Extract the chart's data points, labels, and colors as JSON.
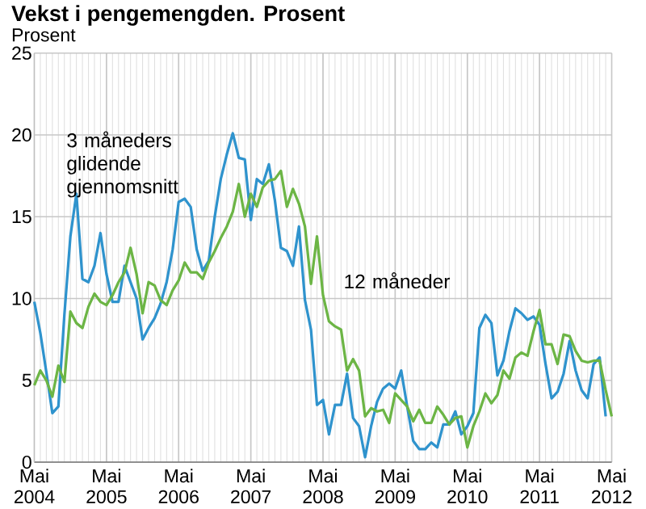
{
  "chart_data": {
    "type": "line",
    "title": "Vekst i pengemengden. Prosent",
    "ylabel": "Prosent",
    "x": [
      "2004-05",
      "2004-06",
      "2004-07",
      "2004-08",
      "2004-09",
      "2004-10",
      "2004-11",
      "2004-12",
      "2005-01",
      "2005-02",
      "2005-03",
      "2005-04",
      "2005-05",
      "2005-06",
      "2005-07",
      "2005-08",
      "2005-09",
      "2005-10",
      "2005-11",
      "2005-12",
      "2006-01",
      "2006-02",
      "2006-03",
      "2006-04",
      "2006-05",
      "2006-06",
      "2006-07",
      "2006-08",
      "2006-09",
      "2006-10",
      "2006-11",
      "2006-12",
      "2007-01",
      "2007-02",
      "2007-03",
      "2007-04",
      "2007-05",
      "2007-06",
      "2007-07",
      "2007-08",
      "2007-09",
      "2007-10",
      "2007-11",
      "2007-12",
      "2008-01",
      "2008-02",
      "2008-03",
      "2008-04",
      "2008-05",
      "2008-06",
      "2008-07",
      "2008-08",
      "2008-09",
      "2008-10",
      "2008-11",
      "2008-12",
      "2009-01",
      "2009-02",
      "2009-03",
      "2009-04",
      "2009-05",
      "2009-06",
      "2009-07",
      "2009-08",
      "2009-09",
      "2009-10",
      "2009-11",
      "2009-12",
      "2010-01",
      "2010-02",
      "2010-03",
      "2010-04",
      "2010-05",
      "2010-06",
      "2010-07",
      "2010-08",
      "2010-09",
      "2010-10",
      "2010-11",
      "2010-12",
      "2011-01",
      "2011-02",
      "2011-03",
      "2011-04",
      "2011-05",
      "2011-06",
      "2011-07",
      "2011-08",
      "2011-09",
      "2011-10",
      "2011-11",
      "2011-12",
      "2012-01",
      "2012-02",
      "2012-03",
      "2012-04",
      "2012-05"
    ],
    "series": [
      {
        "name": "3 måneders glidende gjennomsnitt",
        "color": "#2f93cd",
        "values": [
          9.8,
          7.9,
          5.5,
          3.0,
          3.4,
          9.0,
          13.8,
          16.4,
          11.2,
          11.0,
          12.0,
          14.0,
          11.5,
          9.8,
          9.8,
          12.0,
          11.0,
          10.0,
          7.5,
          8.2,
          8.8,
          9.7,
          11.0,
          13.0,
          15.9,
          16.1,
          15.6,
          13.0,
          11.7,
          12.3,
          15.0,
          17.3,
          18.8,
          20.1,
          18.6,
          18.5,
          14.8,
          17.3,
          17.0,
          18.2,
          16.0,
          13.1,
          12.9,
          12.0,
          14.4,
          9.9,
          8.1,
          3.5,
          3.8,
          1.7,
          3.5,
          3.5,
          5.4,
          2.7,
          2.2,
          0.3,
          2.2,
          3.7,
          4.5,
          4.8,
          4.5,
          5.6,
          3.4,
          1.3,
          0.8,
          0.8,
          1.2,
          0.9,
          2.3,
          2.3,
          3.1,
          1.7,
          2.2,
          3.0,
          8.2,
          9.0,
          8.5,
          5.3,
          6.2,
          8.0,
          9.4,
          9.1,
          8.7,
          8.9,
          8.4,
          6.0,
          3.9,
          4.3,
          5.4,
          7.4,
          5.6,
          4.4,
          3.9,
          6.0,
          6.4,
          2.8,
          null
        ]
      },
      {
        "name": "12 måneder",
        "color": "#6cb545",
        "values": [
          4.7,
          5.6,
          5.0,
          4.0,
          5.9,
          4.9,
          9.2,
          8.5,
          8.2,
          9.5,
          10.3,
          9.8,
          9.6,
          10.2,
          11.0,
          11.6,
          13.1,
          11.5,
          9.1,
          11.0,
          10.8,
          9.9,
          9.6,
          10.5,
          11.1,
          12.2,
          11.6,
          11.6,
          11.2,
          12.2,
          12.9,
          13.7,
          14.4,
          15.3,
          17.0,
          15.0,
          16.4,
          15.6,
          16.8,
          17.2,
          17.3,
          17.8,
          15.6,
          16.7,
          15.8,
          14.4,
          10.9,
          13.8,
          10.2,
          8.6,
          8.3,
          8.1,
          5.6,
          6.3,
          5.6,
          2.8,
          3.3,
          3.1,
          3.2,
          2.4,
          4.2,
          3.8,
          3.4,
          2.5,
          3.2,
          2.4,
          2.4,
          3.4,
          2.9,
          2.3,
          2.7,
          2.8,
          0.9,
          2.2,
          3.1,
          4.2,
          3.6,
          4.1,
          5.6,
          5.1,
          6.4,
          6.7,
          6.5,
          8.0,
          9.3,
          7.2,
          7.2,
          6.0,
          7.8,
          7.7,
          6.8,
          6.2,
          6.1,
          6.2,
          6.2,
          4.4,
          2.8
        ]
      }
    ],
    "xlim": [
      "2004-05",
      "2012-05"
    ],
    "xticks": [
      {
        "value": "2004-05",
        "label": "Mai 2004"
      },
      {
        "value": "2005-05",
        "label": "Mai 2005"
      },
      {
        "value": "2006-05",
        "label": "Mai 2006"
      },
      {
        "value": "2007-05",
        "label": "Mai 2007"
      },
      {
        "value": "2008-05",
        "label": "Mai 2008"
      },
      {
        "value": "2009-05",
        "label": "Mai 2009"
      },
      {
        "value": "2010-05",
        "label": "Mai 2010"
      },
      {
        "value": "2011-05",
        "label": "Mai 2011"
      },
      {
        "value": "2012-05",
        "label": "Mai 2012"
      }
    ],
    "ylim": [
      0,
      25
    ],
    "yticks": [
      0,
      5,
      10,
      15,
      20,
      25
    ],
    "grid": true,
    "legend": false,
    "marker": "none",
    "line_style": "solid"
  }
}
